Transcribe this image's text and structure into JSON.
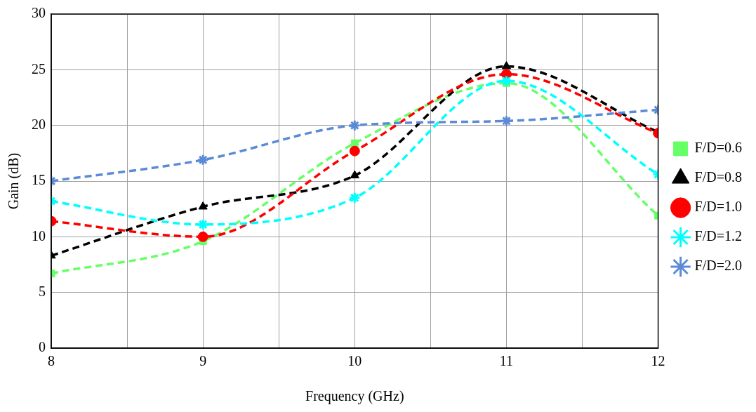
{
  "chart_data": {
    "type": "line",
    "xlabel": "Frequency (GHz)",
    "ylabel": "Gain (dB)",
    "x": [
      8,
      9,
      10,
      11,
      12
    ],
    "xlim": [
      8,
      12
    ],
    "xticks": [
      8,
      {
        "value": 8.5,
        "label": null
      },
      9,
      {
        "value": 9.5,
        "label": null
      },
      10,
      {
        "value": 10.5,
        "label": null
      },
      11,
      {
        "value": 11.5,
        "label": null
      },
      12
    ],
    "ylim": [
      0,
      30
    ],
    "yticks": [
      0,
      5,
      10,
      15,
      20,
      25,
      30
    ],
    "grid": true,
    "legend": "right",
    "line_style": "dashed",
    "series": [
      {
        "name": "F/D=0.6",
        "color": "#66ff66",
        "marker": "square",
        "values": [
          6.7,
          9.6,
          18.4,
          23.8,
          11.9
        ]
      },
      {
        "name": "F/D=0.8",
        "color": "#000000",
        "marker": "triangle",
        "values": [
          8.3,
          12.7,
          15.5,
          25.3,
          19.4
        ]
      },
      {
        "name": "F/D=1.0",
        "color": "#ff0000",
        "marker": "circle",
        "values": [
          11.4,
          10.0,
          17.7,
          24.6,
          19.3
        ]
      },
      {
        "name": "F/D=1.2",
        "color": "#00ffff",
        "marker": "cross",
        "values": [
          13.2,
          11.1,
          13.5,
          24.0,
          15.6
        ]
      },
      {
        "name": "F/D=2.0",
        "color": "#5b8bd6",
        "marker": "cross",
        "values": [
          15.0,
          16.9,
          20.0,
          20.4,
          21.4
        ]
      }
    ]
  }
}
